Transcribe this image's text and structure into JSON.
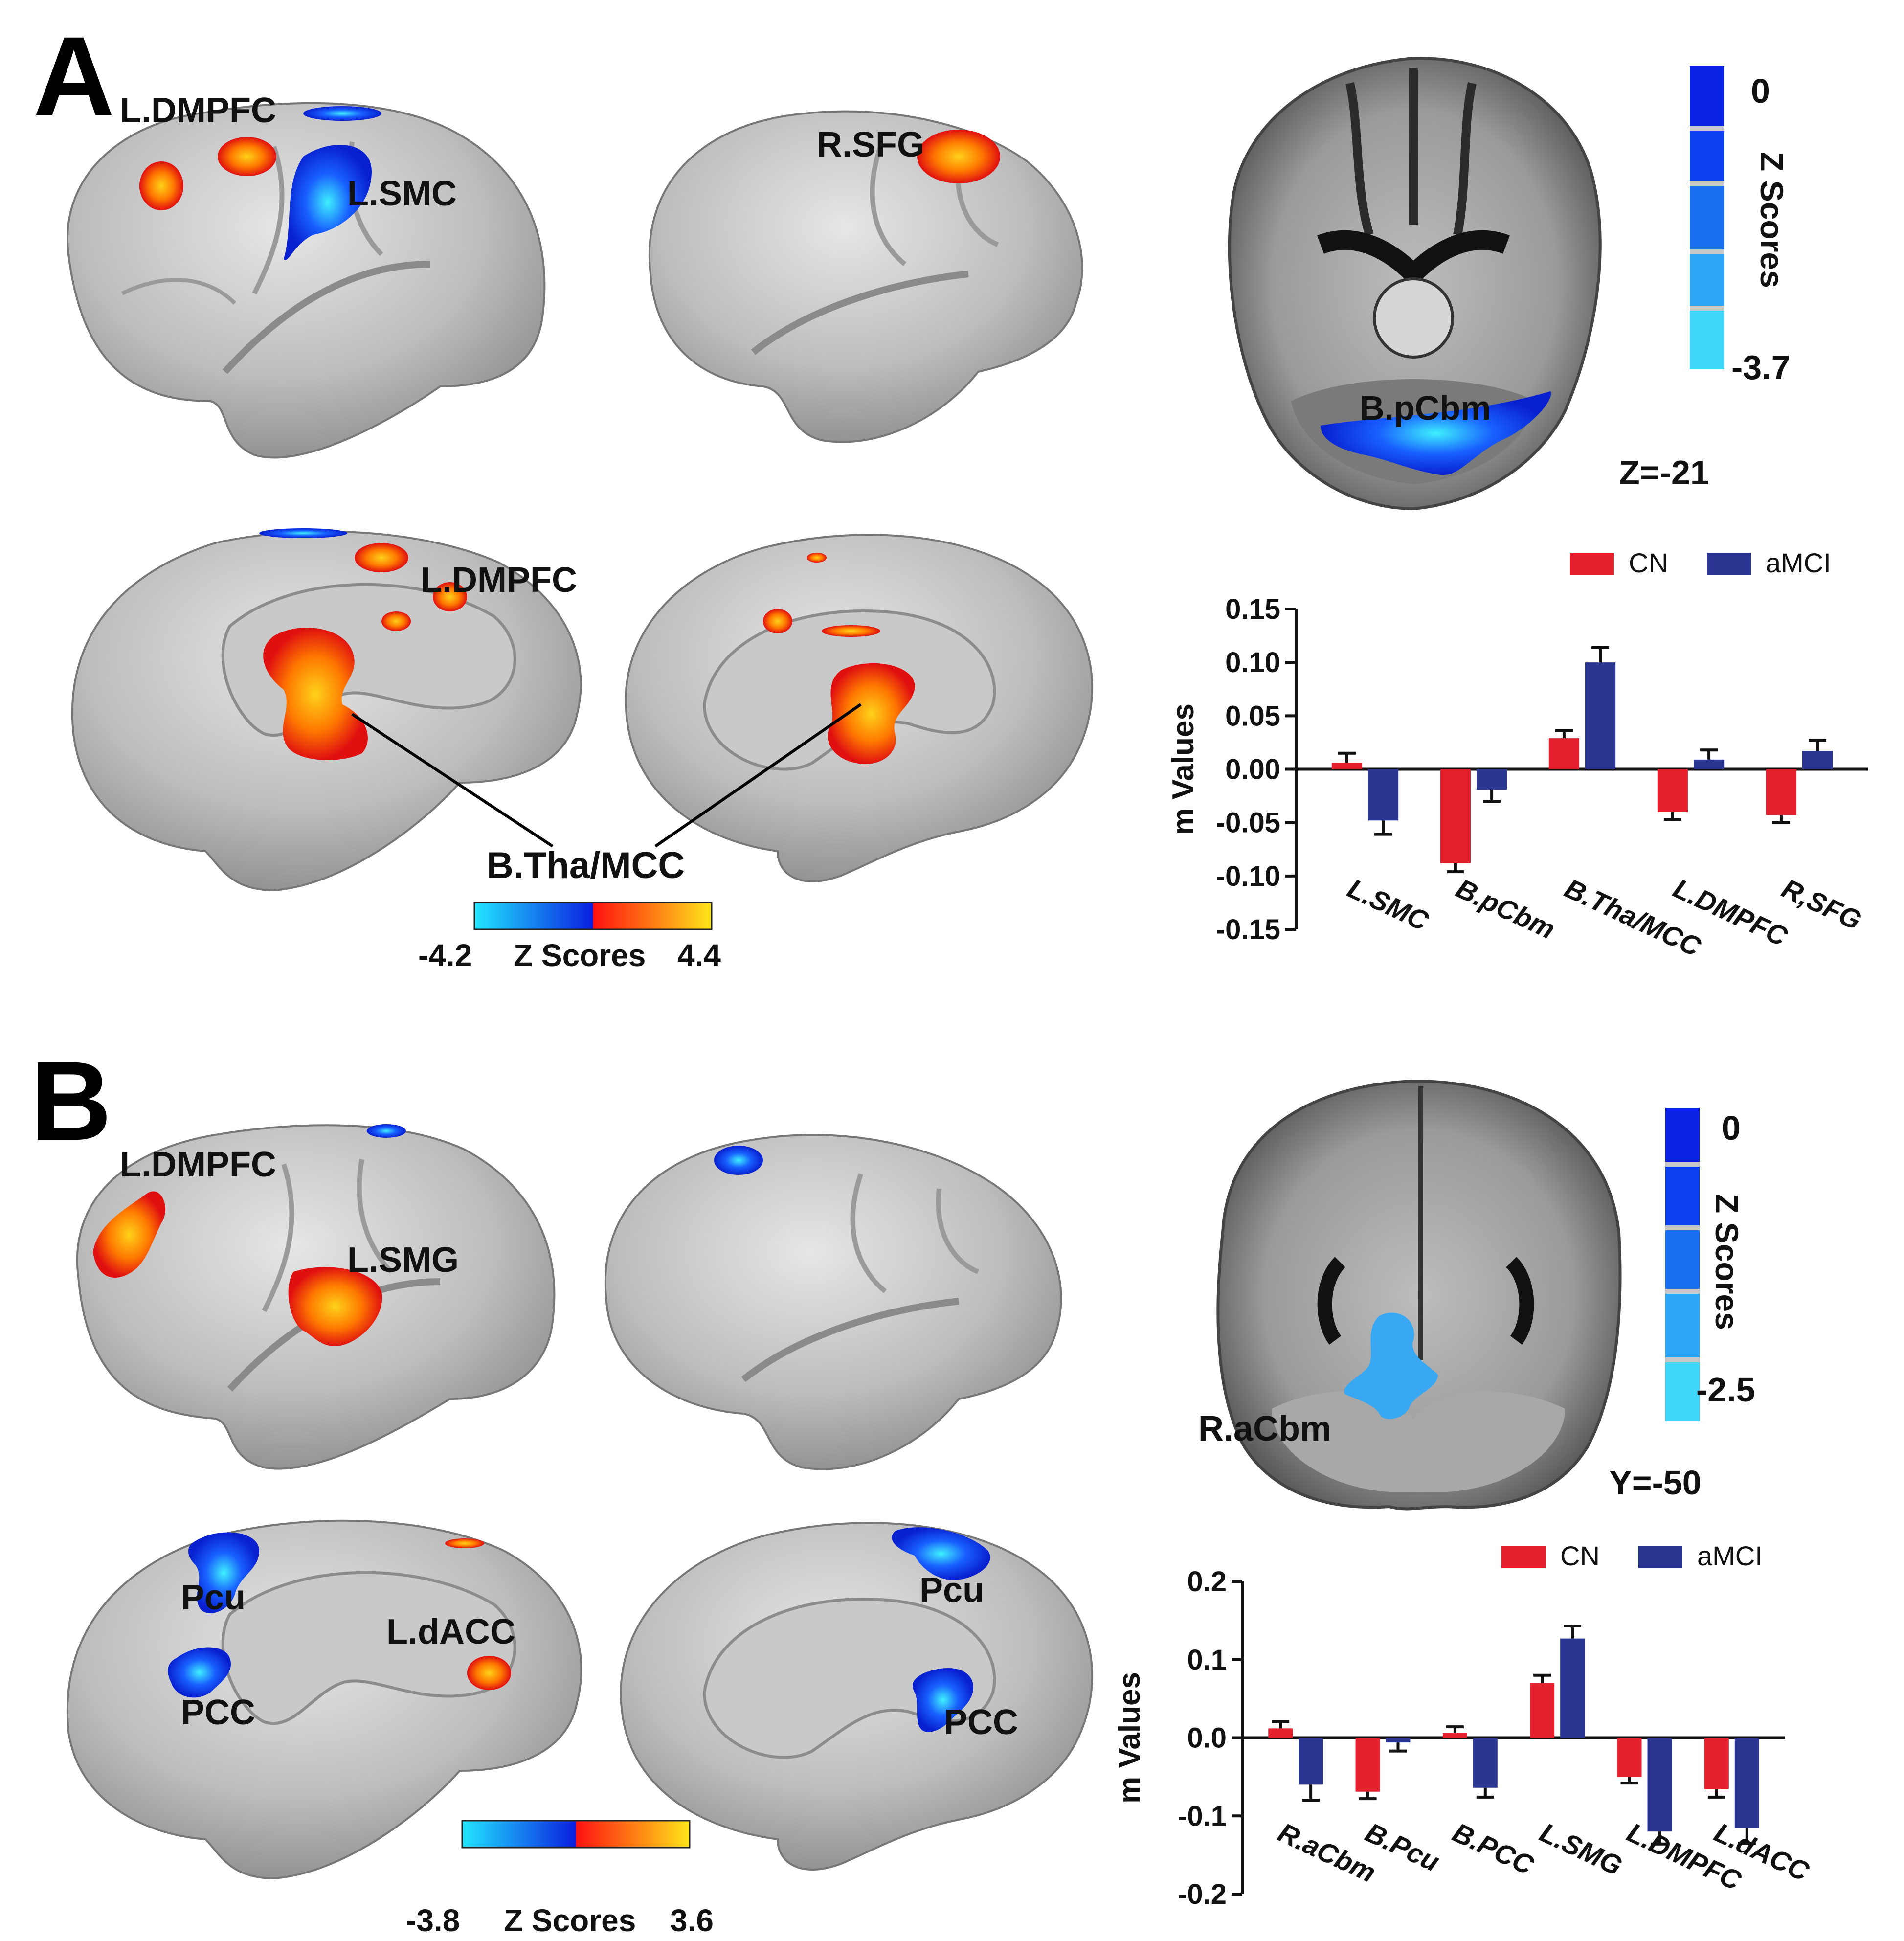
{
  "panels": {
    "A": {
      "letter": "A",
      "lateral_left_labels": [
        "L.DMPFC",
        "L.SMC"
      ],
      "lateral_right_labels": [
        "R.SFG"
      ],
      "medial_labels": [
        "L.DMPFC",
        "B.Tha/MCC"
      ],
      "colorbar": {
        "min": "-4.2",
        "title": "Z Scores",
        "max": "4.4"
      },
      "slice": {
        "region": "B.pCbm",
        "coord": "Z=-21",
        "colorbar_top": "0",
        "colorbar_bottom": "-3.7",
        "colorbar_title": "Z Scores"
      }
    },
    "B": {
      "letter": "B",
      "lateral_left_labels": [
        "L.DMPFC",
        "L.SMG"
      ],
      "medial_left_labels": [
        "Pcu",
        "PCC",
        "L.dACC"
      ],
      "medial_right_labels": [
        "Pcu",
        "PCC"
      ],
      "colorbar": {
        "min": "-3.8",
        "title": "Z Scores",
        "max": "3.6"
      },
      "slice": {
        "region": "R.aCbm",
        "coord": "Y=-50",
        "colorbar_top": "0",
        "colorbar_bottom": "-2.5",
        "colorbar_title": "Z Scores"
      }
    }
  },
  "colors": {
    "cn": "#e5202e",
    "amci": "#2b3592",
    "brain": "#c4c4c4",
    "hot": "#ff5a00",
    "cold": "#1030f0"
  },
  "chart_data": [
    {
      "type": "bar",
      "panel": "A",
      "categories": [
        "L.SMC",
        "B.pCbm",
        "B.Tha/MCC",
        "L.DMPFC",
        "R,SFG"
      ],
      "series": [
        {
          "name": "CN",
          "values": [
            0.006,
            -0.088,
            0.029,
            -0.04,
            -0.043
          ],
          "errors": [
            0.009,
            0.008,
            0.007,
            0.007,
            0.007
          ]
        },
        {
          "name": "aMCI",
          "values": [
            -0.048,
            -0.019,
            0.1,
            0.009,
            0.017
          ],
          "errors": [
            0.013,
            0.011,
            0.014,
            0.009,
            0.01
          ]
        }
      ],
      "ylabel": "m Values",
      "ylim": [
        -0.15,
        0.15
      ],
      "yticks": [
        "0.15",
        "0.10",
        "0.05",
        "0.00",
        "-0.05",
        "-0.10",
        "-0.15"
      ],
      "ytick_values": [
        0.15,
        0.1,
        0.05,
        0.0,
        -0.05,
        -0.1,
        -0.15
      ]
    },
    {
      "type": "bar",
      "panel": "B",
      "categories": [
        "R.aCbm",
        "B.Pcu",
        "B.PCC",
        "L.SMG",
        "L.DMPFC",
        "L.dACC"
      ],
      "series": [
        {
          "name": "CN",
          "values": [
            0.012,
            -0.069,
            0.006,
            0.07,
            -0.05,
            -0.066
          ],
          "errors": [
            0.009,
            0.009,
            0.008,
            0.01,
            0.008,
            0.01
          ]
        },
        {
          "name": "aMCI",
          "values": [
            -0.06,
            -0.006,
            -0.064,
            0.127,
            -0.12,
            -0.115
          ],
          "errors": [
            0.02,
            0.011,
            0.012,
            0.016,
            0.016,
            0.02
          ]
        }
      ],
      "ylabel": "m Values",
      "ylim": [
        -0.2,
        0.2
      ],
      "yticks": [
        "0.2",
        "0.1",
        "0.0",
        "-0.1",
        "-0.2"
      ],
      "ytick_values": [
        0.2,
        0.1,
        0.0,
        -0.1,
        -0.2
      ]
    }
  ]
}
